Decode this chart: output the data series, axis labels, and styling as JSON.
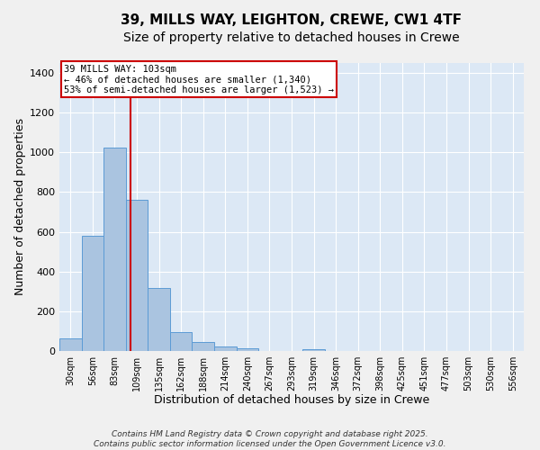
{
  "title1": "39, MILLS WAY, LEIGHTON, CREWE, CW1 4TF",
  "title2": "Size of property relative to detached houses in Crewe",
  "xlabel": "Distribution of detached houses by size in Crewe",
  "ylabel": "Number of detached properties",
  "categories": [
    "30sqm",
    "56sqm",
    "83sqm",
    "109sqm",
    "135sqm",
    "162sqm",
    "188sqm",
    "214sqm",
    "240sqm",
    "267sqm",
    "293sqm",
    "319sqm",
    "346sqm",
    "372sqm",
    "398sqm",
    "425sqm",
    "451sqm",
    "477sqm",
    "503sqm",
    "530sqm",
    "556sqm"
  ],
  "values": [
    65,
    580,
    1025,
    760,
    315,
    95,
    45,
    22,
    13,
    0,
    0,
    10,
    0,
    0,
    0,
    0,
    0,
    0,
    0,
    0,
    0
  ],
  "bar_color": "#aac4e0",
  "bar_edge_color": "#5b9bd5",
  "bar_width": 1.0,
  "vline_x": 2.73,
  "vline_color": "#cc0000",
  "annotation_text": "39 MILLS WAY: 103sqm\n← 46% of detached houses are smaller (1,340)\n53% of semi-detached houses are larger (1,523) →",
  "annotation_box_color": "#ffffff",
  "annotation_box_edge": "#cc0000",
  "ylim": [
    0,
    1450
  ],
  "yticks": [
    0,
    200,
    400,
    600,
    800,
    1000,
    1200,
    1400
  ],
  "bg_color": "#dce8f5",
  "grid_color": "#ffffff",
  "footer_text": "Contains HM Land Registry data © Crown copyright and database right 2025.\nContains public sector information licensed under the Open Government Licence v3.0.",
  "title_fontsize": 11,
  "subtitle_fontsize": 10,
  "tick_fontsize": 7,
  "footer_fontsize": 6.5,
  "ylabel_fontsize": 9,
  "xlabel_fontsize": 9
}
